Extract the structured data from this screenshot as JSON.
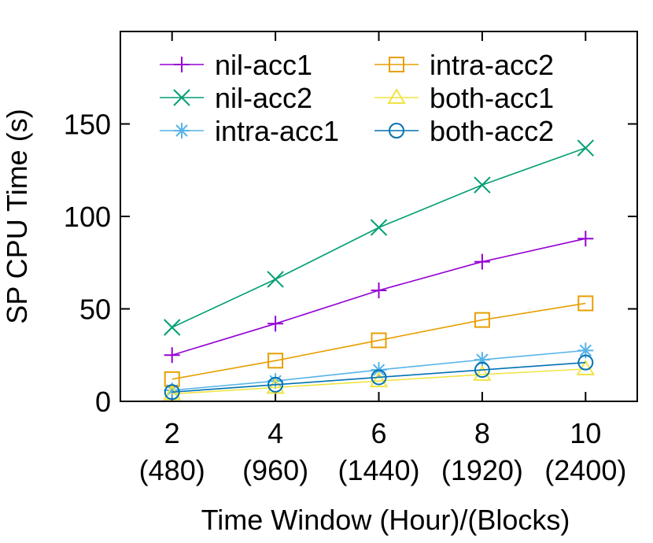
{
  "chart_data": {
    "type": "line",
    "title": "",
    "xlabel": "Time Window (Hour)/(Blocks)",
    "ylabel": "SP CPU Time (s)",
    "x": [
      2,
      4,
      6,
      8,
      10
    ],
    "x_tick_labels": [
      "2",
      "4",
      "6",
      "8",
      "10"
    ],
    "x_tick_sublabels": [
      "(480)",
      "(960)",
      "(1440)",
      "(1920)",
      "(2400)"
    ],
    "xlim": [
      1,
      11
    ],
    "ylim": [
      0,
      200
    ],
    "y_ticks": [
      0,
      50,
      100,
      150
    ],
    "grid": false,
    "legend_position": "top-left, two columns",
    "series": [
      {
        "name": "nil-acc1",
        "color": "#9400d3",
        "marker": "plus",
        "values": [
          25,
          42,
          60,
          75.5,
          88
        ]
      },
      {
        "name": "nil-acc2",
        "color": "#009e73",
        "marker": "cross",
        "values": [
          40,
          66,
          94,
          117,
          137
        ]
      },
      {
        "name": "intra-acc1",
        "color": "#56b4e9",
        "marker": "star",
        "values": [
          6,
          11,
          17,
          22.5,
          27.5
        ]
      },
      {
        "name": "intra-acc2",
        "color": "#e69f00",
        "marker": "square",
        "values": [
          12,
          22,
          33,
          44,
          53
        ]
      },
      {
        "name": "both-acc1",
        "color": "#f0e442",
        "marker": "triangle",
        "values": [
          4,
          7.5,
          11,
          14.5,
          17.5
        ]
      },
      {
        "name": "both-acc2",
        "color": "#0072b2",
        "marker": "circle",
        "values": [
          5,
          9,
          13,
          17,
          21
        ]
      }
    ]
  }
}
